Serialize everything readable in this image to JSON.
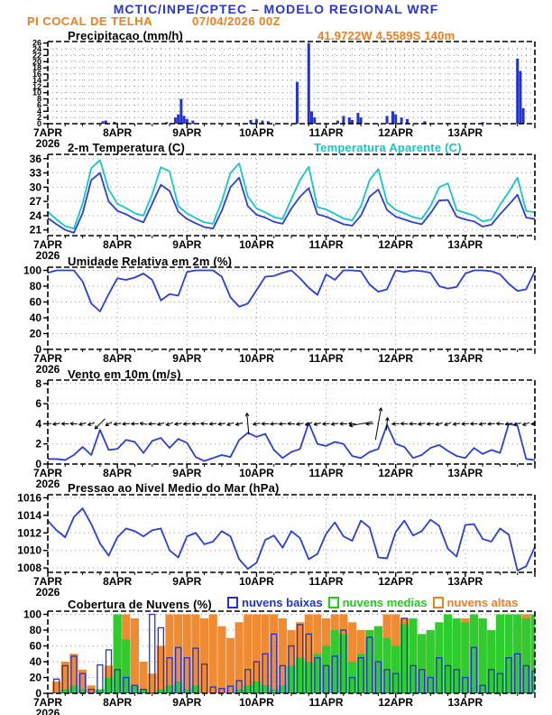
{
  "header": {
    "title": "MCTIC/INPE/CPTEC – MODELO REGIONAL WRF",
    "station": "PI COCAL DE TELHA",
    "run_datetime": "07/04/2026 00Z",
    "station_coords": "41.9722W 4.5589S 140m"
  },
  "colors": {
    "header_blue": "#2a35d6",
    "orange": "#ee7f1e",
    "cyan": "#17c7c2",
    "line_blue": "#2b3fd6",
    "bar_blue": "#2433cc",
    "green": "#1ecb1e",
    "cloud_orange": "#ef8b33",
    "cloud_green": "#2ecc2e",
    "grid": "#999999"
  },
  "x_axis": {
    "day_labels": [
      "7APR",
      "8APR",
      "9APR",
      "10APR",
      "11APR",
      "12APR",
      "13APR"
    ],
    "year_label": "2026",
    "hours_total": 168
  },
  "panels": {
    "precip": {
      "title": "Precipitacao (mm/h)"
    },
    "temp": {
      "title": "2-m Temperatura (C)",
      "legend2": "Temperatura Aparente (C)"
    },
    "rh": {
      "title": "Umidade Relativa em 2m (%)"
    },
    "wind": {
      "title": "Vento em 10m (m/s)"
    },
    "press": {
      "title": "Pressao ao Nivel Medio do Mar (hPa)"
    },
    "cloud": {
      "title": "Cobertura de Nuvens (%)",
      "legend": [
        {
          "label": "nuvens baixas",
          "color": "#2433cc"
        },
        {
          "label": "nuvens medias",
          "color": "#1ecb1e"
        },
        {
          "label": "nuvens altas",
          "color": "#ee7f1e"
        }
      ]
    }
  },
  "chart_data": [
    {
      "id": "precip",
      "type": "bars-sparse",
      "title": "Precipitacao (mm/h)",
      "ylim": [
        0,
        26.5
      ],
      "yticks": [
        0,
        2,
        4,
        6,
        8,
        10,
        12,
        14,
        16,
        18,
        20,
        22,
        24,
        26
      ],
      "small_ylabels": true,
      "dense_grid": true,
      "bar_color": "#2433cc",
      "points": [
        [
          19,
          0.8
        ],
        [
          20,
          1.0
        ],
        [
          23,
          0.6
        ],
        [
          41,
          0.5
        ],
        [
          44,
          2.0
        ],
        [
          45,
          3.0
        ],
        [
          46,
          8.0
        ],
        [
          47,
          2.5
        ],
        [
          48,
          1.5
        ],
        [
          50,
          1.0
        ],
        [
          70,
          1.2
        ],
        [
          72,
          1.5
        ],
        [
          74,
          1.0
        ],
        [
          76,
          0.8
        ],
        [
          86,
          13.5
        ],
        [
          90,
          26
        ],
        [
          91,
          4
        ],
        [
          92,
          2
        ],
        [
          100,
          1.0
        ],
        [
          102,
          2.5
        ],
        [
          104,
          2.0
        ],
        [
          105,
          1.2
        ],
        [
          107,
          3.5
        ],
        [
          108,
          2.0
        ],
        [
          117,
          2.5
        ],
        [
          119,
          4.0
        ],
        [
          120,
          3.0
        ],
        [
          122,
          2.0
        ],
        [
          124,
          1.5
        ],
        [
          130,
          0.8
        ],
        [
          150,
          0.5
        ],
        [
          162,
          21
        ],
        [
          163,
          17
        ],
        [
          164,
          5
        ]
      ]
    },
    {
      "id": "temp",
      "type": "line",
      "title": "2-m Temperatura (C)",
      "ylim": [
        19.8,
        36.9
      ],
      "yticks": [
        21,
        24,
        27,
        30,
        33,
        36
      ],
      "step_hours": 3,
      "series": [
        {
          "name": "2-m Temperatura (C)",
          "color": "#2b3fd6",
          "values": [
            23.5,
            22.2,
            21.0,
            20.4,
            24.5,
            31.5,
            33.0,
            27.0,
            25.0,
            24.3,
            23.3,
            22.6,
            26.5,
            30.5,
            29.2,
            24.8,
            23.3,
            22.4,
            21.6,
            21.3,
            25.0,
            30.0,
            32.0,
            26.0,
            24.2,
            23.6,
            22.7,
            22.3,
            25.5,
            28.0,
            29.8,
            24.3,
            23.8,
            23.0,
            22.2,
            21.9,
            24.0,
            28.0,
            29.5,
            25.2,
            23.8,
            23.2,
            22.6,
            22.2,
            24.5,
            27.2,
            27.3,
            23.8,
            23.2,
            22.8,
            21.7,
            22.1,
            24.3,
            26.3,
            28.4,
            23.6,
            23.3
          ]
        },
        {
          "name": "Temperatura Aparente (C)",
          "color": "#17c7c2",
          "values": [
            24.8,
            23.2,
            21.8,
            21.3,
            26.5,
            34.0,
            35.7,
            29.5,
            26.5,
            25.6,
            24.5,
            24.0,
            28.5,
            34.2,
            33.3,
            26.0,
            24.5,
            23.5,
            22.6,
            22.3,
            27.0,
            33.0,
            35.0,
            28.0,
            25.5,
            24.7,
            23.7,
            23.3,
            27.5,
            31.5,
            34.3,
            25.8,
            25.3,
            24.4,
            23.4,
            23.0,
            26.0,
            31.5,
            33.8,
            26.8,
            25.2,
            24.5,
            23.7,
            23.3,
            26.0,
            30.0,
            30.8,
            25.2,
            24.6,
            24.0,
            22.8,
            23.2,
            26.3,
            29.0,
            32.0,
            25.0,
            24.7
          ]
        }
      ]
    },
    {
      "id": "rh",
      "type": "line",
      "title": "Umidade Relativa em 2m (%)",
      "ylim": [
        0,
        104
      ],
      "yticks": [
        0,
        20,
        40,
        60,
        80,
        100
      ],
      "step_hours": 3,
      "series": [
        {
          "name": "Umidade Relativa",
          "color": "#2b3fd6",
          "values": [
            97,
            100,
            100,
            100,
            86,
            58,
            48,
            70,
            90,
            88,
            91,
            96,
            88,
            62,
            70,
            68,
            98,
            100,
            100,
            100,
            92,
            66,
            54,
            58,
            75,
            92,
            93,
            97,
            100,
            90,
            78,
            69,
            95,
            88,
            100,
            100,
            99,
            82,
            73,
            76,
            100,
            98,
            100,
            99,
            97,
            80,
            77,
            79,
            96,
            100,
            100,
            99,
            95,
            83,
            74,
            76,
            99
          ]
        }
      ]
    },
    {
      "id": "wind",
      "type": "line",
      "title": "Vento em 10m (m/s)",
      "ylim": [
        0,
        8.35
      ],
      "yticks": [
        0,
        2,
        4,
        6,
        8
      ],
      "step_hours": 3,
      "series": [
        {
          "name": "Velocidade do vento",
          "color": "#2b3fd6",
          "values": [
            0.5,
            0.5,
            0.4,
            0.9,
            1.7,
            0.9,
            3.4,
            1.4,
            1.5,
            2.4,
            2.2,
            1.1,
            2.3,
            2.6,
            1.6,
            2.5,
            2.1,
            0.7,
            0.3,
            0.6,
            0.9,
            0.7,
            2.4,
            3.1,
            2.7,
            3.0,
            1.4,
            0.6,
            1.2,
            1.5,
            4.1,
            2.0,
            1.8,
            2.2,
            2.0,
            0.8,
            0.6,
            1.2,
            1.5,
            3.9,
            2.0,
            1.7,
            0.6,
            0.9,
            1.6,
            1.9,
            1.3,
            0.8,
            0.6,
            1.6,
            1.0,
            1.4,
            1.1,
            4.0,
            3.8,
            0.5,
            0.4
          ]
        }
      ],
      "arrows": {
        "level": 4,
        "default_len": 8,
        "dirs": [
          185,
          190,
          180,
          175,
          195,
          200,
          225,
          210,
          190,
          185,
          180,
          170,
          185,
          195,
          200,
          190,
          185,
          180,
          175,
          185,
          190,
          200,
          195,
          95,
          190,
          180,
          185,
          185,
          175,
          190,
          200,
          195,
          185,
          190,
          180,
          175,
          190,
          185,
          80,
          85,
          185,
          175,
          180,
          190,
          185,
          195,
          200,
          190,
          185,
          180,
          190,
          185,
          175,
          190,
          195,
          200,
          185
        ],
        "len_overrides": {
          "6": 16,
          "23": 24,
          "36": 26,
          "38": 36,
          "39": 14
        }
      }
    },
    {
      "id": "press",
      "type": "line",
      "title": "Pressao ao Nivel Medio do Mar (hPa)",
      "ylim": [
        1007.5,
        1016.35
      ],
      "yticks": [
        1008,
        1010,
        1012,
        1014,
        1016
      ],
      "step_hours": 3,
      "series": [
        {
          "name": "Pressao ao nivel medio do mar",
          "color": "#2b3fd6",
          "values": [
            1013.4,
            1012.3,
            1011.5,
            1013.8,
            1014.8,
            1013.0,
            1010.8,
            1009.4,
            1011.5,
            1012.5,
            1012.2,
            1011.6,
            1012.3,
            1012.5,
            1010.0,
            1009.2,
            1011.6,
            1012.0,
            1010.7,
            1011.0,
            1012.2,
            1011.6,
            1009.0,
            1007.9,
            1008.6,
            1011.2,
            1011.7,
            1010.3,
            1012.2,
            1011.4,
            1009.0,
            1009.6,
            1011.9,
            1013.2,
            1011.6,
            1011.1,
            1013.4,
            1012.6,
            1009.2,
            1009.1,
            1012.1,
            1013.4,
            1011.7,
            1012.2,
            1013.5,
            1012.8,
            1010.2,
            1009.3,
            1012.9,
            1013.0,
            1011.3,
            1011.0,
            1012.5,
            1011.8,
            1007.7,
            1008.2,
            1010.4
          ]
        }
      ]
    },
    {
      "id": "cloud",
      "type": "bars-multi",
      "title": "Cobertura de Nuvens (%)",
      "ylim": [
        0,
        104
      ],
      "yticks": [
        0,
        20,
        40,
        60,
        80,
        100
      ],
      "step_hours": 3,
      "series": [
        {
          "name": "nuvens altas",
          "color": "#ef8b33",
          "style": "fill",
          "values": [
            0,
            15,
            40,
            50,
            30,
            10,
            5,
            35,
            100,
            100,
            95,
            40,
            25,
            60,
            100,
            100,
            100,
            100,
            95,
            100,
            85,
            70,
            90,
            100,
            100,
            100,
            100,
            95,
            80,
            90,
            100,
            100,
            95,
            100,
            100,
            90,
            80,
            70,
            85,
            100,
            100,
            95,
            80,
            75,
            70,
            60,
            80,
            90,
            95,
            100,
            90,
            80,
            60,
            50,
            90,
            100,
            100
          ]
        },
        {
          "name": "nuvens medias",
          "color": "#2ecc2e",
          "style": "fill",
          "values": [
            0,
            0,
            5,
            10,
            5,
            0,
            5,
            20,
            100,
            68,
            10,
            5,
            0,
            5,
            10,
            15,
            5,
            10,
            0,
            0,
            0,
            0,
            5,
            10,
            15,
            10,
            5,
            10,
            35,
            45,
            40,
            50,
            60,
            80,
            75,
            40,
            50,
            80,
            85,
            70,
            60,
            88,
            95,
            75,
            80,
            90,
            100,
            95,
            90,
            100,
            95,
            80,
            100,
            100,
            100,
            95,
            100
          ]
        },
        {
          "name": "nuvens baixas",
          "color": "#2433cc",
          "style": "outline",
          "values": [
            0,
            18,
            35,
            47,
            25,
            5,
            36,
            55,
            30,
            20,
            10,
            5,
            100,
            83,
            45,
            58,
            45,
            57,
            37,
            8,
            6,
            9,
            16,
            30,
            40,
            50,
            75,
            35,
            60,
            87,
            75,
            45,
            35,
            47,
            80,
            20,
            45,
            71,
            40,
            30,
            25,
            95,
            35,
            30,
            20,
            45,
            35,
            30,
            20,
            58,
            10,
            30,
            25,
            45,
            50,
            35,
            28
          ]
        }
      ]
    }
  ]
}
